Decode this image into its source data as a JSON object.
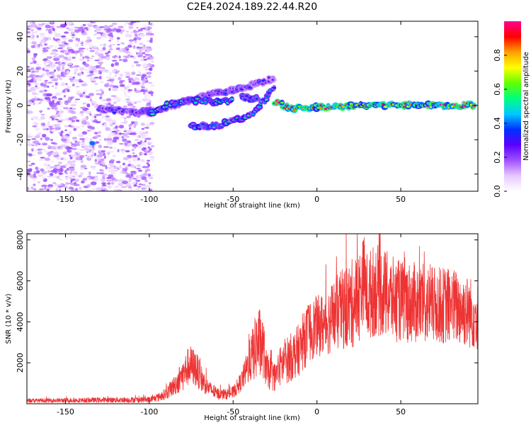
{
  "title": "C2E4.2024.189.22.44.R20",
  "chart_data": [
    {
      "type": "heatmap",
      "xlabel": "Height of straight line (km)",
      "ylabel": "Frequency (Hz)",
      "xlim": [
        -173,
        96
      ],
      "ylim": [
        -50,
        49
      ],
      "x_ticks": [
        -150,
        -100,
        -50,
        0,
        50
      ],
      "y_ticks": [
        -40,
        -20,
        0,
        20,
        40
      ],
      "colorbar": {
        "label": "Normalized spectral amplitude",
        "range": [
          0,
          1
        ],
        "ticks": [
          0.0,
          0.2,
          0.4,
          0.6,
          0.8
        ],
        "colors": [
          "#ffffff",
          "#e6c8ff",
          "#a050ff",
          "#5a00ff",
          "#0030ff",
          "#00c8ff",
          "#00ff80",
          "#60ff00",
          "#ffff00",
          "#ffa000",
          "#ff0000",
          "#ff0090"
        ]
      },
      "features": [
        {
          "name": "noise",
          "x_range": [
            -173,
            -98
          ],
          "y_range": [
            -50,
            49
          ],
          "amplitude": 0.1
        },
        {
          "name": "track-1",
          "points": [
            [
              -130,
              -2
            ],
            [
              -110,
              -4
            ],
            [
              -95,
              -3
            ],
            [
              -80,
              2
            ],
            [
              -65,
              6
            ],
            [
              -55,
              8
            ],
            [
              -45,
              10
            ],
            [
              -35,
              13
            ],
            [
              -25,
              16
            ]
          ],
          "amplitude": 0.3
        },
        {
          "name": "track-2",
          "points": [
            [
              -100,
              -5
            ],
            [
              -90,
              0
            ],
            [
              -75,
              3
            ],
            [
              -60,
              2
            ],
            [
              -50,
              3
            ]
          ],
          "amplitude": 0.5
        },
        {
          "name": "track-3",
          "points": [
            [
              -75,
              -12
            ],
            [
              -60,
              -12
            ],
            [
              -50,
              -9
            ],
            [
              -40,
              -6
            ],
            [
              -35,
              -1
            ],
            [
              -30,
              5
            ],
            [
              -25,
              12
            ]
          ],
          "amplitude": 0.45
        },
        {
          "name": "track-4",
          "points": [
            [
              -45,
              5
            ],
            [
              -40,
              4
            ],
            [
              -35,
              4
            ]
          ],
          "amplitude": 0.45
        },
        {
          "name": "main-line",
          "points": [
            [
              -25,
              2
            ],
            [
              -15,
              -2
            ],
            [
              0,
              -1
            ],
            [
              10,
              -1
            ],
            [
              20,
              0
            ],
            [
              40,
              0
            ],
            [
              60,
              0
            ],
            [
              95,
              0
            ]
          ],
          "amplitude": 0.85
        },
        {
          "name": "outlier",
          "points": [
            [
              -134,
              -22
            ]
          ],
          "amplitude": 0.4
        }
      ]
    },
    {
      "type": "line",
      "xlabel": "Height of straight line (km)",
      "ylabel": "SNR (10 * v/v)",
      "xlim": [
        -173,
        96
      ],
      "ylim": [
        0,
        8300
      ],
      "x_ticks": [
        -150,
        -100,
        -50,
        0,
        50
      ],
      "y_ticks": [
        2000,
        4000,
        6000,
        8000
      ],
      "line_color": "#ee3333",
      "x": [
        -173,
        -100,
        -95,
        -90,
        -85,
        -80,
        -76,
        -72,
        -68,
        -65,
        -60,
        -55,
        -50,
        -45,
        -42,
        -38,
        -35,
        -32,
        -30,
        -25,
        -22,
        -20,
        -15,
        -10,
        -5,
        0,
        5,
        10,
        15,
        20,
        25,
        28,
        30,
        35,
        40,
        45,
        50,
        60,
        70,
        80,
        90,
        96
      ],
      "y": [
        150,
        200,
        300,
        500,
        900,
        1400,
        1900,
        1700,
        1100,
        800,
        500,
        450,
        550,
        1100,
        1700,
        2500,
        3000,
        2700,
        1600,
        1300,
        1800,
        2000,
        2300,
        2700,
        3500,
        3800,
        3900,
        4300,
        4600,
        4800,
        5200,
        6200,
        5200,
        5600,
        5400,
        5100,
        5000,
        4900,
        4800,
        4800,
        4500,
        4300
      ],
      "spread": [
        100,
        150,
        200,
        300,
        500,
        800,
        1000,
        900,
        600,
        400,
        300,
        250,
        300,
        500,
        800,
        1400,
        1900,
        1500,
        900,
        700,
        1000,
        1100,
        1200,
        1300,
        1500,
        1500,
        1600,
        1800,
        2000,
        2200,
        2300,
        2100,
        2200,
        2300,
        2200,
        2100,
        2000,
        2000,
        1900,
        1900,
        1800,
        1700
      ]
    }
  ]
}
